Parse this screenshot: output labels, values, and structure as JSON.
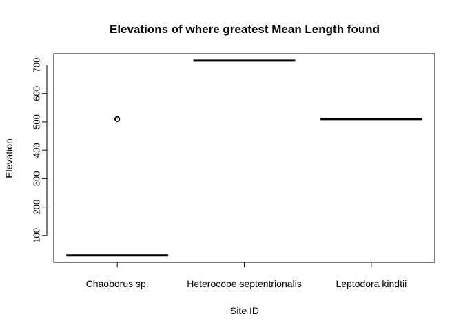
{
  "chart_data": {
    "type": "box",
    "title": "Elevations of where greatest Mean Length found",
    "xlabel": "Site ID",
    "ylabel": "Elevation",
    "categories": [
      "Chaoborus sp.",
      "Heterocope septentrionalis",
      "Leptodora kindtii"
    ],
    "yticks": [
      100,
      200,
      300,
      400,
      500,
      600,
      700
    ],
    "ylim": [
      5,
      740
    ],
    "boxes": [
      {
        "category": "Chaoborus sp.",
        "median": 30,
        "q1": 30,
        "q3": 30,
        "whisker_low": 30,
        "whisker_high": 30,
        "outliers": [
          510,
          510
        ]
      },
      {
        "category": "Heterocope septentrionalis",
        "median": 716,
        "q1": 716,
        "q3": 716,
        "whisker_low": 716,
        "whisker_high": 716,
        "outliers": []
      },
      {
        "category": "Leptodora kindtii",
        "median": 510,
        "q1": 510,
        "q3": 510,
        "whisker_low": 510,
        "whisker_high": 510,
        "outliers": []
      }
    ],
    "grid": false,
    "legend": "none"
  },
  "colors": {
    "ink": "#000000",
    "background": "#ffffff"
  }
}
